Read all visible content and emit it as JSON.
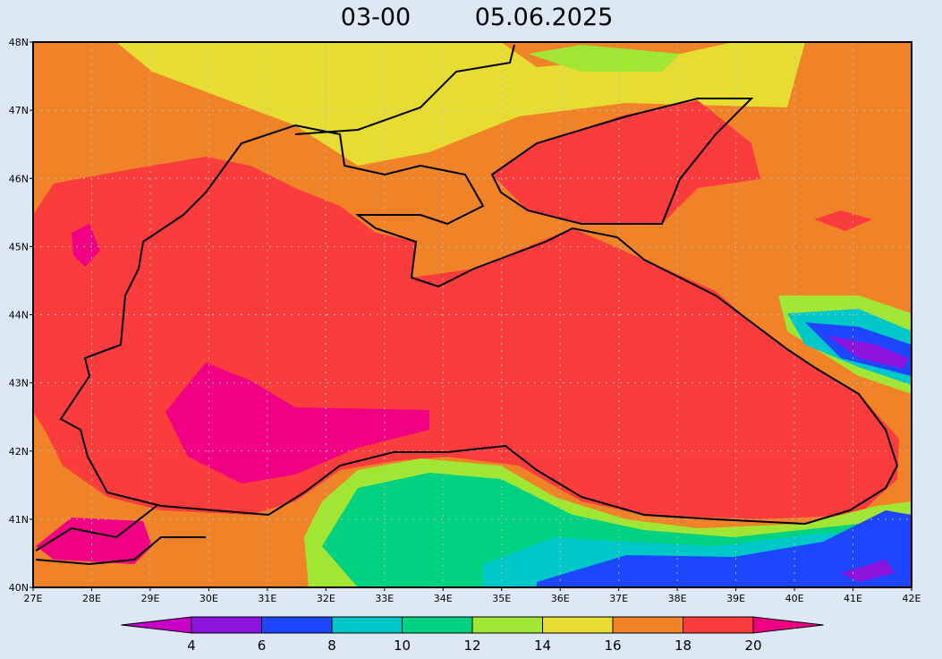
{
  "title": {
    "time": "03-00",
    "date": "05.06.2025"
  },
  "map": {
    "lat_labels": [
      "40N",
      "41N",
      "42N",
      "43N",
      "44N",
      "45N",
      "46N",
      "47N",
      "48N"
    ],
    "lon_labels": [
      "27E",
      "28E",
      "29E",
      "30E",
      "31E",
      "32E",
      "33E",
      "34E",
      "35E",
      "36E",
      "37E",
      "38E",
      "39E",
      "40E",
      "41E",
      "42E"
    ]
  },
  "colorbar": {
    "labels": [
      "4",
      "6",
      "8",
      "10",
      "12",
      "14",
      "16",
      "18",
      "20"
    ],
    "colors": [
      "#c800c8",
      "#8c14dc",
      "#1e46ff",
      "#00c8c8",
      "#00d282",
      "#a0e632",
      "#e6dc32",
      "#f08228",
      "#fa3c3c",
      "#f00082"
    ]
  }
}
